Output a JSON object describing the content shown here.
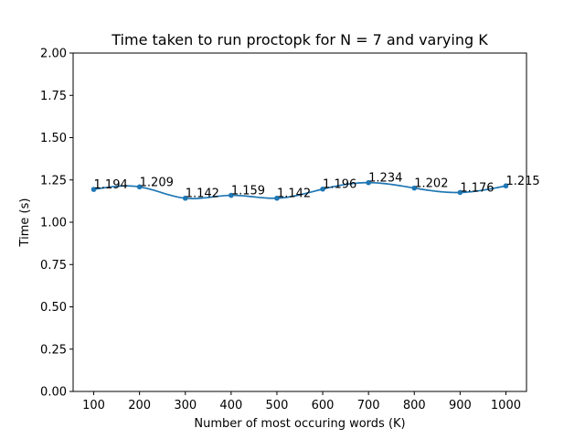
{
  "chart_data": {
    "type": "line",
    "title": "Time taken to run proctopk for N = 7 and varying K",
    "xlabel": "Number of most occuring words (K)",
    "ylabel": "Time (s)",
    "x": [
      100,
      200,
      300,
      400,
      500,
      600,
      700,
      800,
      900,
      1000
    ],
    "y": [
      1.194,
      1.209,
      1.142,
      1.159,
      1.142,
      1.196,
      1.234,
      1.202,
      1.176,
      1.215
    ],
    "data_labels": [
      "1.194",
      "1.209",
      "1.142",
      "1.159",
      "1.142",
      "1.196",
      "1.234",
      "1.202",
      "1.176",
      "1.215"
    ],
    "xticks": [
      "100",
      "200",
      "300",
      "400",
      "500",
      "600",
      "700",
      "800",
      "900",
      "1000"
    ],
    "yticks": [
      "0.00",
      "0.25",
      "0.50",
      "0.75",
      "1.00",
      "1.25",
      "1.50",
      "1.75",
      "2.00"
    ],
    "xlim": [
      55,
      1045
    ],
    "ylim": [
      0,
      2
    ],
    "grid": false,
    "line_color": "#1f77b4",
    "smoothed": true,
    "markers": true
  }
}
